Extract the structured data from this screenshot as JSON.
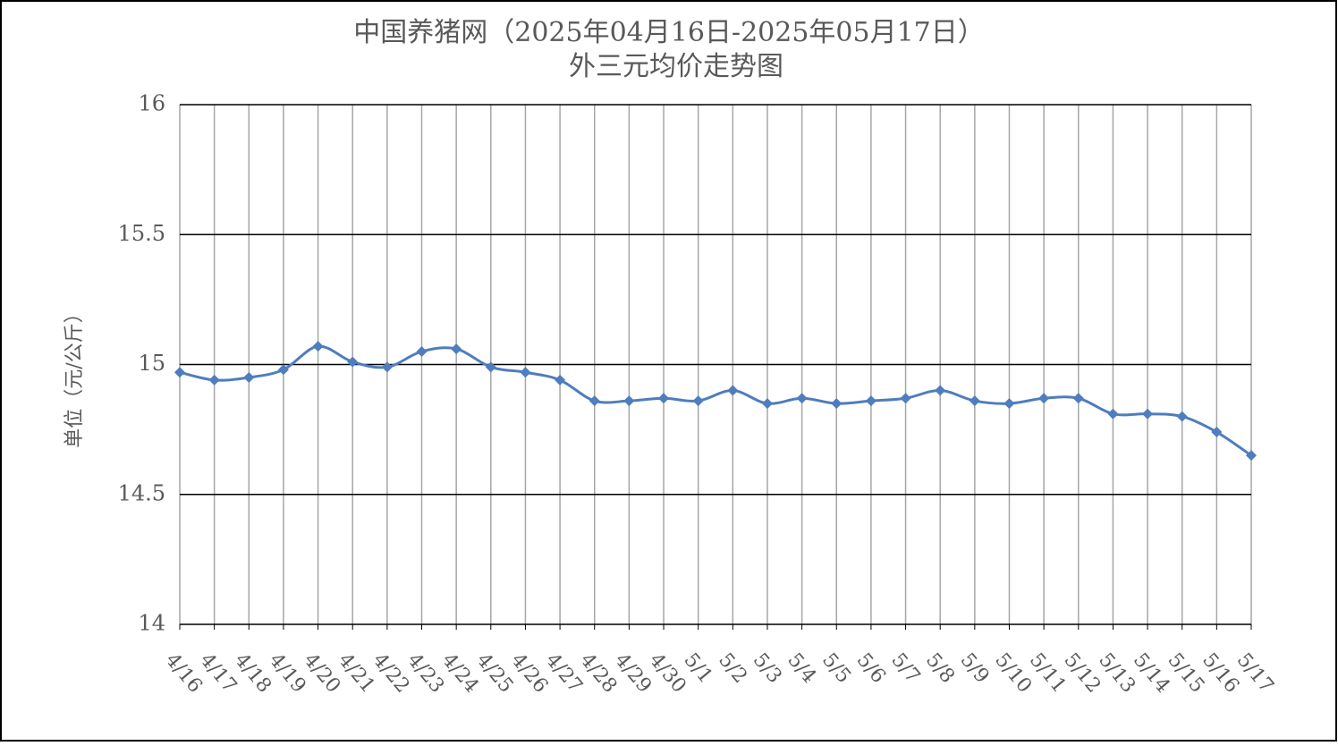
{
  "chart_data": {
    "type": "line",
    "title": "中国养猪网（2025年04月16日-2025年05月17日）",
    "subtitle": "外三元均价走势图",
    "y_label": "单位（元/公斤）",
    "categories": [
      "4/16",
      "4/17",
      "4/18",
      "4/19",
      "4/20",
      "4/21",
      "4/22",
      "4/23",
      "4/24",
      "4/25",
      "4/26",
      "4/27",
      "4/28",
      "4/29",
      "4/30",
      "5/1",
      "5/2",
      "5/3",
      "5/4",
      "5/5",
      "5/6",
      "5/7",
      "5/8",
      "5/9",
      "5/10",
      "5/11",
      "5/12",
      "5/13",
      "5/14",
      "5/15",
      "5/16",
      "5/17"
    ],
    "series": [
      {
        "name": "外三元均价",
        "color": "#4f7dbd",
        "values": [
          14.97,
          14.94,
          14.95,
          14.98,
          15.07,
          15.01,
          14.99,
          15.05,
          15.06,
          14.99,
          14.97,
          14.94,
          14.86,
          14.86,
          14.87,
          14.86,
          14.9,
          14.85,
          14.87,
          14.85,
          14.86,
          14.87,
          14.9,
          14.86,
          14.85,
          14.87,
          14.87,
          14.81,
          14.81,
          14.8,
          14.74,
          14.65
        ]
      }
    ],
    "ylim": [
      14,
      16
    ],
    "yticks": [
      14,
      14.5,
      15,
      15.5,
      16
    ],
    "grid": true
  }
}
